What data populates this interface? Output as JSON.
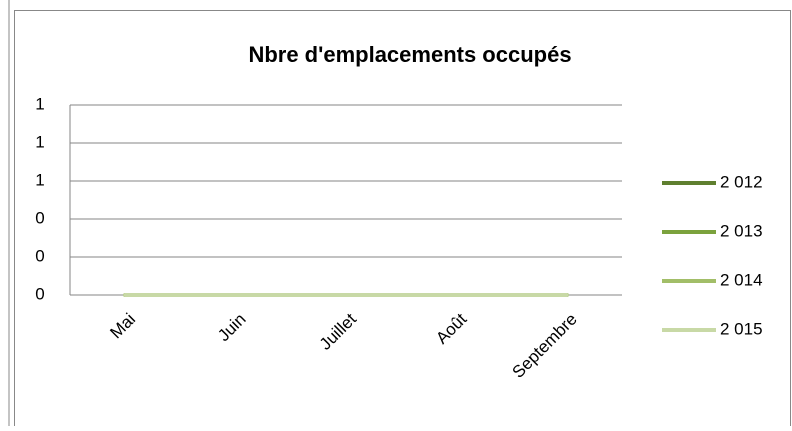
{
  "chart_data": {
    "type": "line",
    "title": "Nbre d'emplacements occupés",
    "categories": [
      "Mai",
      "Juin",
      "Juillet",
      "Août",
      "Septembre"
    ],
    "series": [
      {
        "name": "2 012",
        "color": "#5f7f2f",
        "values": [
          0,
          0,
          0,
          0,
          0
        ]
      },
      {
        "name": "2 013",
        "color": "#7ba23d",
        "values": [
          0,
          0,
          0,
          0,
          0
        ]
      },
      {
        "name": "2 014",
        "color": "#a2be68",
        "values": [
          0,
          0,
          0,
          0,
          0
        ]
      },
      {
        "name": "2 015",
        "color": "#c8d9a6",
        "values": [
          0,
          0,
          0,
          0,
          0
        ]
      }
    ],
    "ylim": [
      0,
      1
    ],
    "yticks": [
      0,
      {
        "value": 0.2,
        "label": "0"
      },
      {
        "value": 0.4,
        "label": "0"
      },
      {
        "value": 0.6,
        "label": "1"
      },
      {
        "value": 0.8,
        "label": "1"
      },
      1
    ],
    "grid": true,
    "legend": "right"
  }
}
